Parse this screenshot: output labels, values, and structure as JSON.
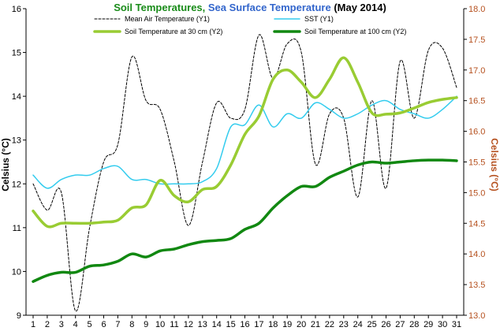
{
  "chart_data": {
    "type": "line",
    "title_parts": [
      {
        "text": "Soil Temperatures, ",
        "color": "#1a8c1a"
      },
      {
        "text": "Sea Surface Temperature ",
        "color": "#3366cc"
      },
      {
        "text": "(May 2014)",
        "color": "#000000"
      }
    ],
    "ylabel": "Celsius (°C)",
    "y2label": "Celsius (°C)",
    "x": [
      1,
      2,
      3,
      4,
      5,
      6,
      7,
      8,
      9,
      10,
      11,
      12,
      13,
      14,
      15,
      16,
      17,
      18,
      19,
      20,
      21,
      22,
      23,
      24,
      25,
      26,
      27,
      28,
      29,
      30,
      31
    ],
    "x_tick_labels": [
      "1",
      "2",
      "3",
      "4",
      "5",
      "6",
      "7",
      "8",
      "9",
      "10",
      "11",
      "12",
      "13",
      "14",
      "15",
      "16",
      "17",
      "18",
      "19",
      "20",
      "21",
      "22",
      "23",
      "24",
      "25",
      "26",
      "27",
      "28",
      "29",
      "30",
      "31"
    ],
    "ylim": [
      9,
      16
    ],
    "y_ticks": [
      9,
      10,
      11,
      12,
      13,
      14,
      15,
      16
    ],
    "y_tick_labels": [
      "9",
      "10",
      "11",
      "12",
      "13",
      "14",
      "15",
      "16"
    ],
    "y2lim": [
      13.0,
      18.0
    ],
    "y2_ticks": [
      13.0,
      13.5,
      14.0,
      14.5,
      15.0,
      15.5,
      16.0,
      16.5,
      17.0,
      17.5,
      18.0
    ],
    "y2_tick_labels": [
      "13.0",
      "13.5",
      "14.0",
      "14.5",
      "15.0",
      "15.5",
      "16.0",
      "16.5",
      "17.0",
      "17.5",
      "18.0"
    ],
    "legend_placement": "top",
    "grid": false,
    "series": [
      {
        "name": "Mean Air Temperature (Y1)",
        "axis": "y1",
        "color": "#000000",
        "style": "dashed",
        "width": 1,
        "values": [
          12.0,
          11.4,
          11.8,
          9.1,
          11.0,
          12.5,
          12.9,
          14.9,
          13.9,
          13.7,
          12.5,
          11.05,
          12.5,
          13.85,
          13.5,
          13.7,
          15.4,
          14.4,
          15.2,
          15.0,
          12.45,
          13.6,
          13.5,
          11.7,
          13.9,
          11.9,
          14.8,
          13.5,
          15.05,
          15.1,
          14.2
        ]
      },
      {
        "name": "SST (Y1)",
        "axis": "y1",
        "color": "#33ccee",
        "style": "solid",
        "width": 1.5,
        "values": [
          12.2,
          11.9,
          12.1,
          12.2,
          12.2,
          12.35,
          12.4,
          12.1,
          12.1,
          12.0,
          12.0,
          12.0,
          12.05,
          12.35,
          13.3,
          13.35,
          13.8,
          13.3,
          13.6,
          13.5,
          13.85,
          13.7,
          13.5,
          13.6,
          13.8,
          13.9,
          13.7,
          13.6,
          13.5,
          13.7,
          14.0
        ]
      },
      {
        "name": "Soil Temperature at 30 cm (Y2)",
        "axis": "y2",
        "color": "#99cc33",
        "style": "solid",
        "width": 3.5,
        "values": [
          14.7,
          14.45,
          14.5,
          14.5,
          14.5,
          14.52,
          14.55,
          14.75,
          14.8,
          15.2,
          14.95,
          14.85,
          15.05,
          15.1,
          15.45,
          15.95,
          16.25,
          16.85,
          17.0,
          16.8,
          16.55,
          16.85,
          17.2,
          16.8,
          16.3,
          16.28,
          16.3,
          16.38,
          16.47,
          16.52,
          16.55
        ]
      },
      {
        "name": "Soil Temperature at 100 cm (Y2)",
        "axis": "y2",
        "color": "#118811",
        "style": "solid",
        "width": 3.5,
        "values": [
          13.55,
          13.65,
          13.7,
          13.7,
          13.8,
          13.82,
          13.88,
          14.0,
          13.95,
          14.05,
          14.08,
          14.15,
          14.2,
          14.22,
          14.25,
          14.4,
          14.5,
          14.75,
          14.95,
          15.1,
          15.1,
          15.25,
          15.35,
          15.45,
          15.5,
          15.48,
          15.5,
          15.52,
          15.53,
          15.53,
          15.52
        ]
      }
    ]
  }
}
